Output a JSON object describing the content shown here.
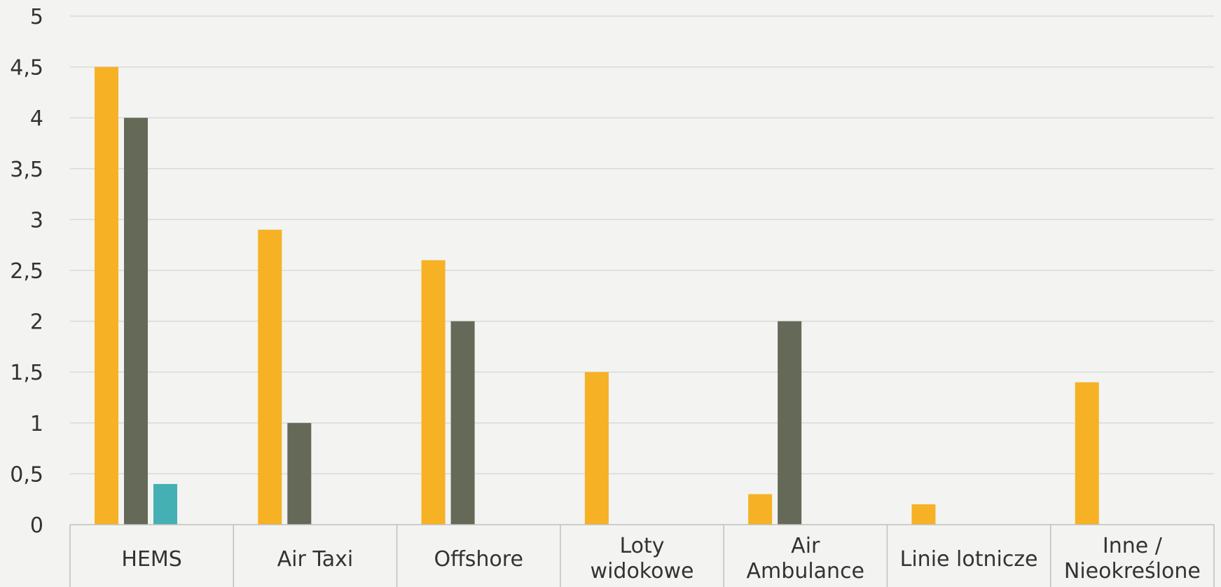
{
  "chart_data": {
    "type": "bar",
    "categories": [
      [
        "HEMS"
      ],
      [
        "Air Taxi"
      ],
      [
        "Offshore"
      ],
      [
        "Loty",
        "widokowe"
      ],
      [
        "Air",
        "Ambulance"
      ],
      [
        "Linie lotnicze"
      ],
      [
        "Inne /",
        "Nieokreślone"
      ]
    ],
    "series": [
      {
        "color": "#f6b125",
        "values": [
          4.5,
          2.9,
          2.6,
          1.5,
          0.3,
          0.2,
          1.4
        ]
      },
      {
        "color": "#656a58",
        "values": [
          4.0,
          1.0,
          2.0,
          0.0,
          2.0,
          0.0,
          0.0
        ]
      },
      {
        "color": "#45b0b4",
        "values": [
          0.4,
          0.0,
          0.0,
          0.0,
          0.0,
          0.0,
          0.0
        ]
      }
    ],
    "ylim": [
      0,
      5
    ],
    "yticks": [
      "0",
      "0,5",
      "1",
      "1,5",
      "2",
      "2,5",
      "3",
      "3,5",
      "4",
      "4,5",
      "5"
    ],
    "grid": true,
    "title": "",
    "xlabel": "",
    "ylabel": ""
  }
}
